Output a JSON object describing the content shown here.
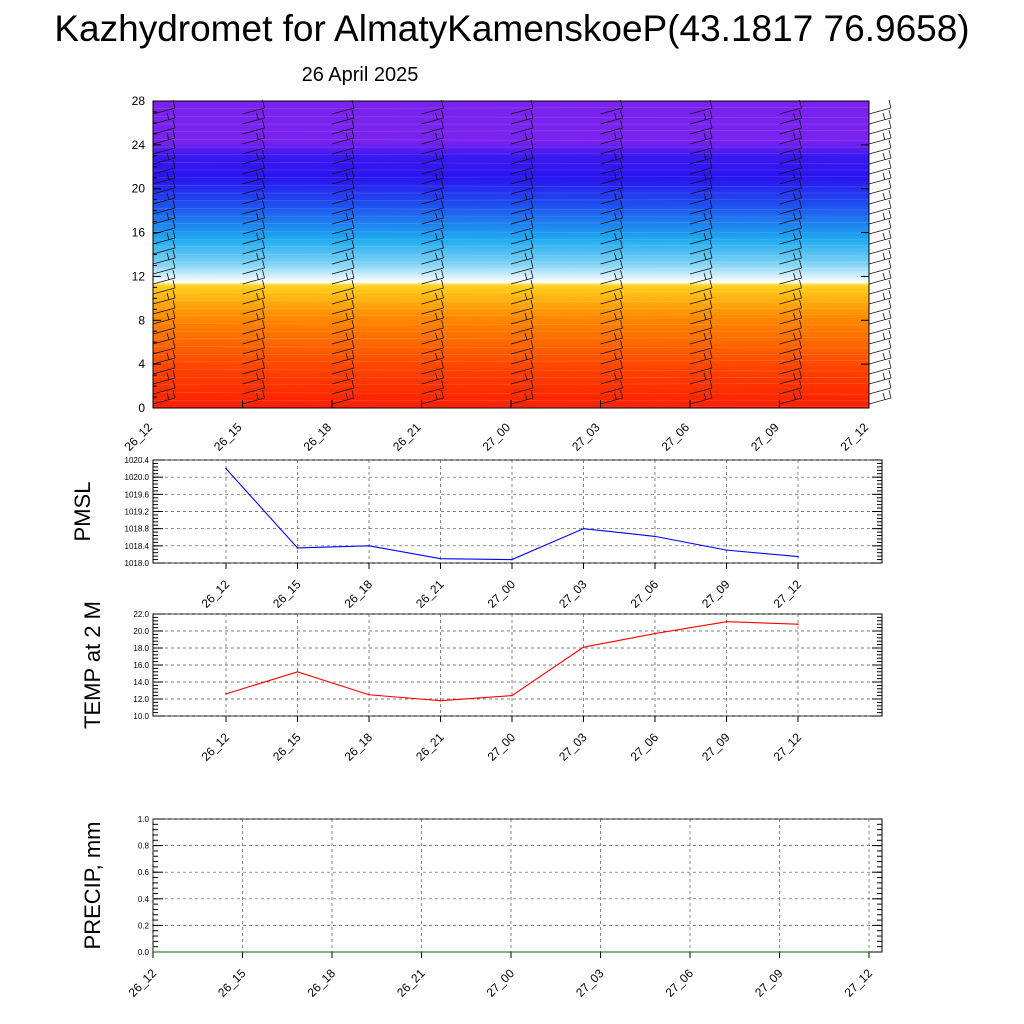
{
  "header": {
    "title": "Kazhydromet for AlmatyKamenskoeP(43.1817 76.9658)",
    "date": "26 April 2025"
  },
  "chart_data": [
    {
      "type": "heatmap",
      "categories": [
        "26_12",
        "26_15",
        "26_18",
        "26_21",
        "27_00",
        "27_03",
        "27_06",
        "27_09",
        "27_12"
      ],
      "ylim": [
        0,
        28
      ],
      "yticks": [
        "0",
        "4",
        "8",
        "12",
        "16",
        "20",
        "24",
        "28"
      ],
      "overlay": "wind barbs at every time step and level",
      "color_scale": [
        "#ff1e00",
        "#ff6a00",
        "#ffd21e",
        "#ffffff",
        "#1eaaf0",
        "#2a14f0",
        "#7a22f0"
      ]
    },
    {
      "type": "line",
      "ylabel": "PMSL",
      "categories": [
        "26_12",
        "26_15",
        "26_18",
        "26_21",
        "27_00",
        "27_03",
        "27_06",
        "27_09",
        "27_12"
      ],
      "series": [
        {
          "values": [
            1020.2,
            1018.35,
            1018.4,
            1018.1,
            1018.08,
            1018.8,
            1018.62,
            1018.3,
            1018.15
          ]
        }
      ],
      "ylim": [
        1018.0,
        1020.4
      ],
      "yticks": [
        "1018.0",
        "1018.4",
        "1018.8",
        "1019.2",
        "1019.6",
        "1020.0",
        "1020.4"
      ],
      "color": "#0000ff",
      "grid": true
    },
    {
      "type": "line",
      "ylabel": "TEMP at 2 M",
      "categories": [
        "26_12",
        "26_15",
        "26_18",
        "26_21",
        "27_00",
        "27_03",
        "27_06",
        "27_09",
        "27_12"
      ],
      "series": [
        {
          "values": [
            12.6,
            15.2,
            12.5,
            11.8,
            12.4,
            18.1,
            19.7,
            21.1,
            20.8
          ]
        }
      ],
      "ylim": [
        10.0,
        22.0
      ],
      "yticks": [
        "10.0",
        "12.0",
        "14.0",
        "16.0",
        "18.0",
        "20.0",
        "22.0"
      ],
      "color": "#ff0000",
      "grid": true
    },
    {
      "type": "line",
      "ylabel": "PRECIP, mm",
      "categories": [
        "26_12",
        "26_15",
        "26_18",
        "26_21",
        "27_00",
        "27_03",
        "27_06",
        "27_09",
        "27_12"
      ],
      "series": [
        {
          "values": [
            0,
            0,
            0,
            0,
            0,
            0,
            0,
            0,
            0
          ]
        }
      ],
      "ylim": [
        0.0,
        1.0
      ],
      "yticks": [
        "0.0",
        "0.2",
        "0.4",
        "0.6",
        "0.8",
        "1.0"
      ],
      "color": "#006400",
      "grid": true
    }
  ]
}
